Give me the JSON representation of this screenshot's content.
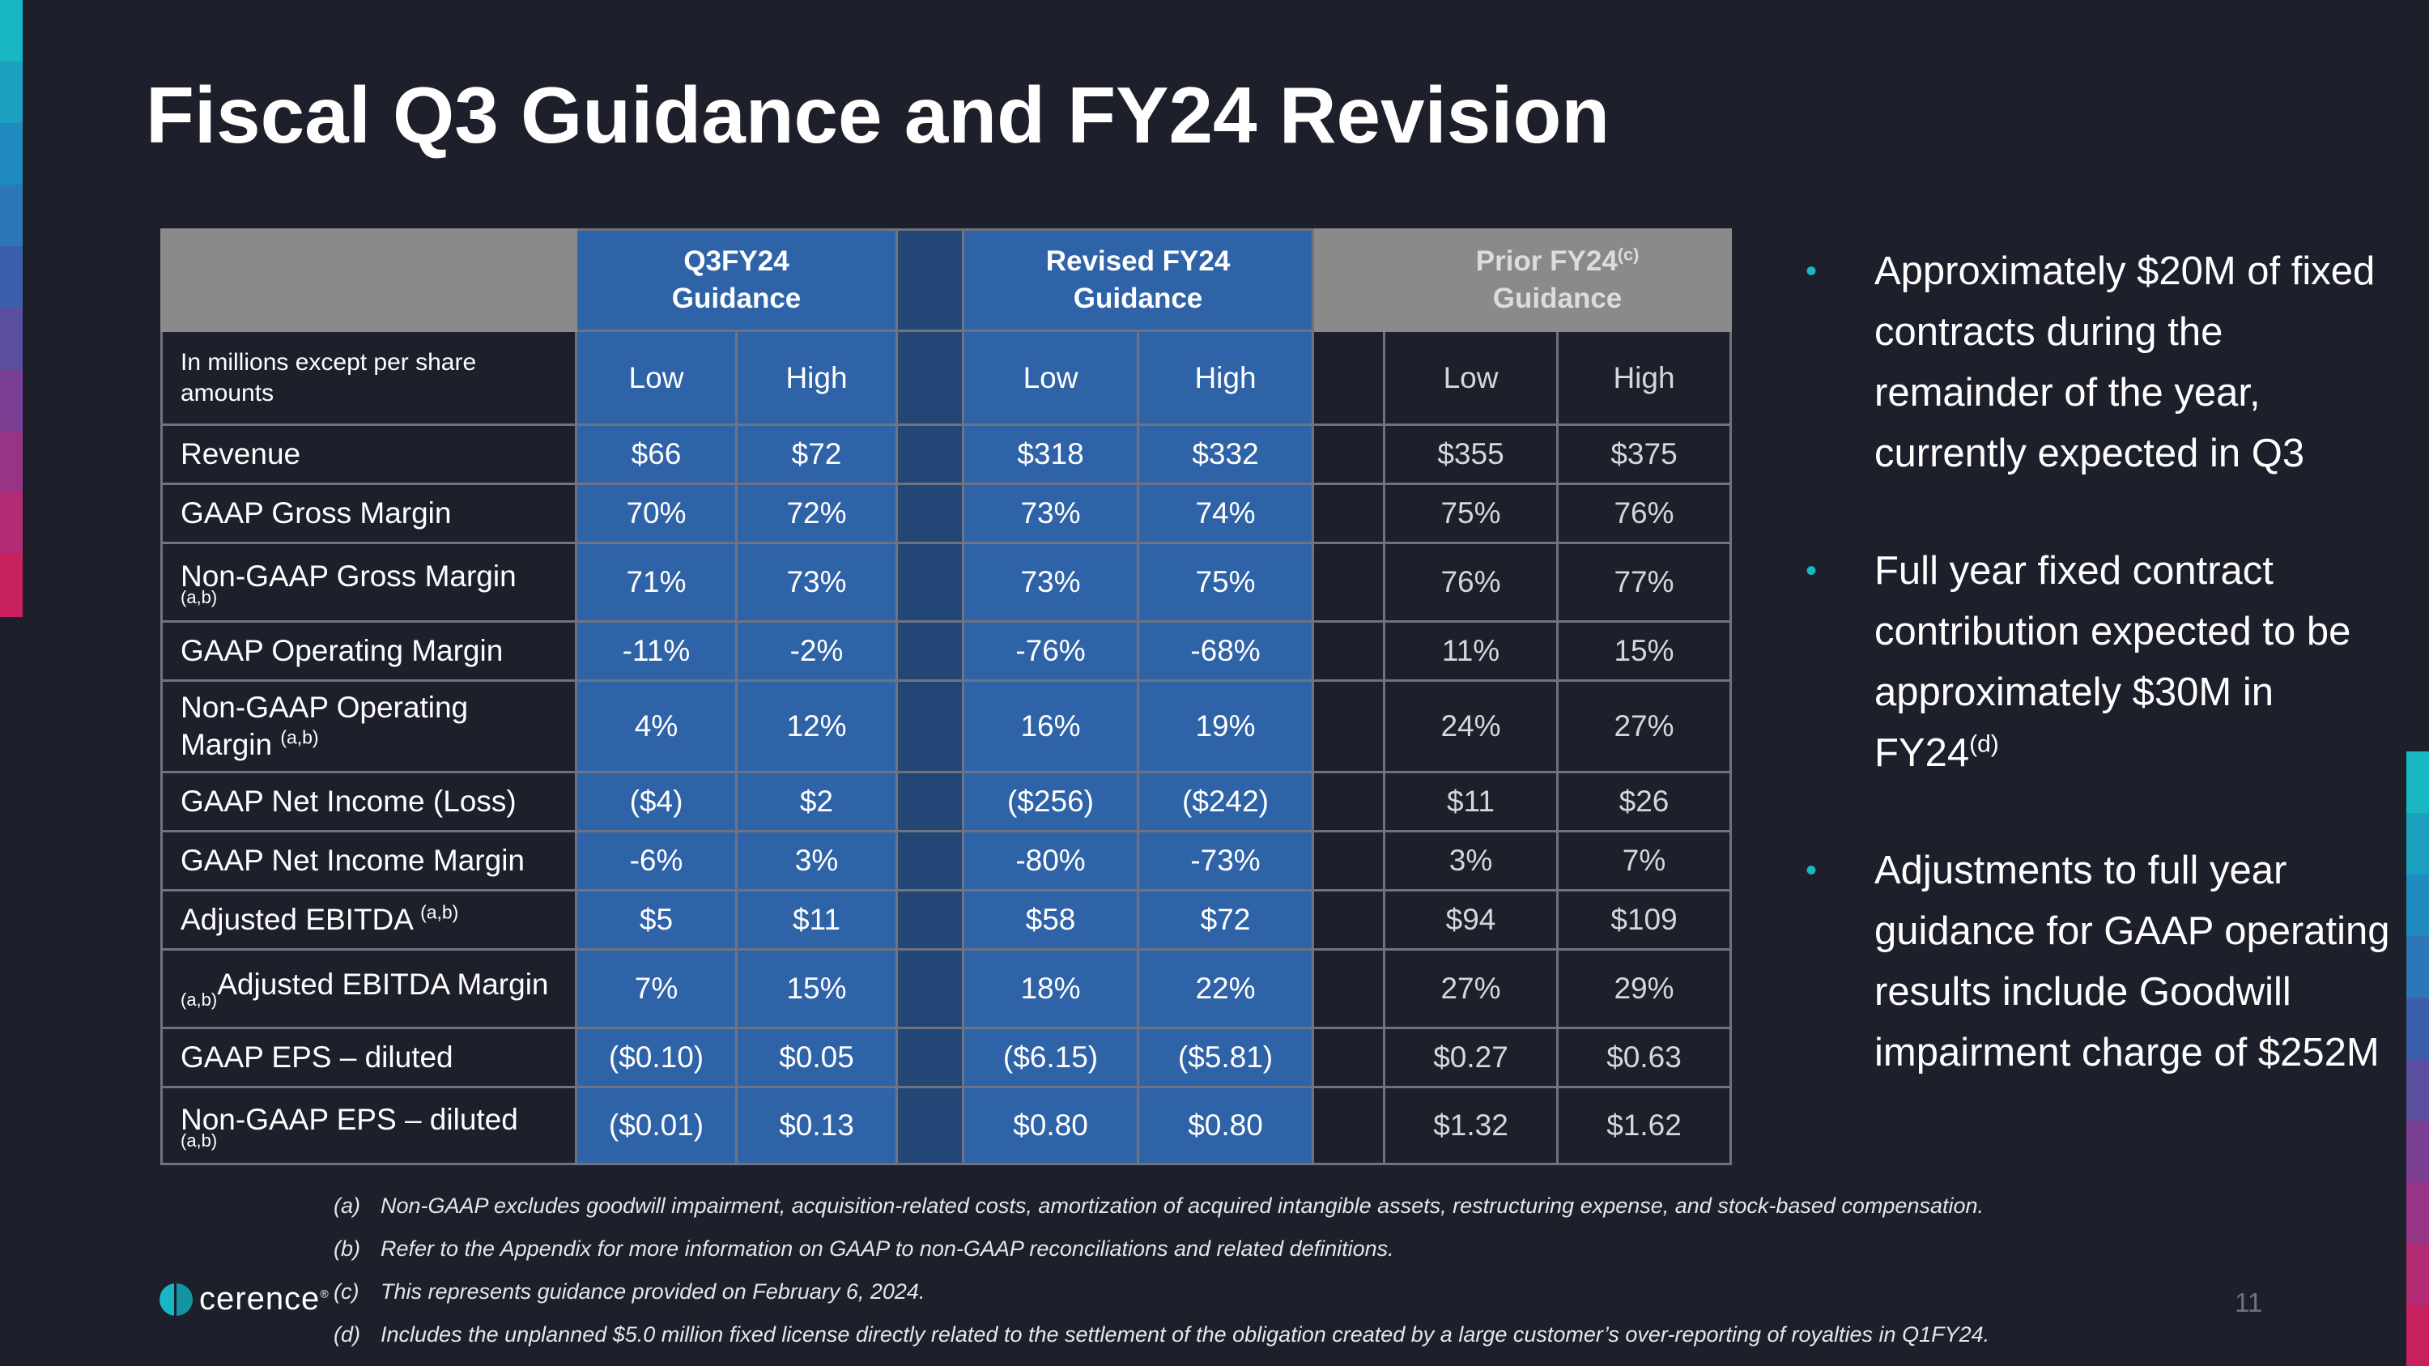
{
  "title": "Fiscal Q3 Guidance and FY24 Revision",
  "colors": {
    "background": "#1d1f2b",
    "table_blue": "#2f63a7",
    "table_gap_blue": "#224675",
    "prior_header_gray": "#8a8a8a",
    "bullet_accent": "#19b6c4",
    "logo_teal": "#19b6c4"
  },
  "table": {
    "groups": {
      "q3_line1": "Q3FY24",
      "q3_line2": "Guidance",
      "revised_line1": "Revised FY24",
      "revised_line2": "Guidance",
      "prior_line1": "Prior FY24",
      "prior_sup": "(c)",
      "prior_line2": "Guidance"
    },
    "units_label": "In millions except per share amounts",
    "col_low": "Low",
    "col_high": "High",
    "rows": [
      {
        "label": "Revenue",
        "note": "",
        "q3_low": "$66",
        "q3_high": "$72",
        "rev_low": "$318",
        "rev_high": "$332",
        "prior_low": "$355",
        "prior_high": "$375"
      },
      {
        "label": "GAAP Gross Margin",
        "note": "",
        "q3_low": "70%",
        "q3_high": "72%",
        "rev_low": "73%",
        "rev_high": "74%",
        "prior_low": "75%",
        "prior_high": "76%"
      },
      {
        "label": "Non-GAAP Gross Margin",
        "note": "(a,b)",
        "q3_low": "71%",
        "q3_high": "73%",
        "rev_low": "73%",
        "rev_high": "75%",
        "prior_low": "76%",
        "prior_high": "77%"
      },
      {
        "label": "GAAP Operating Margin",
        "note": "",
        "q3_low": "-11%",
        "q3_high": "-2%",
        "rev_low": "-76%",
        "rev_high": "-68%",
        "prior_low": "11%",
        "prior_high": "15%"
      },
      {
        "label_line1": "Non-GAAP Operating",
        "label_line2": "Margin",
        "note": "(a,b)",
        "q3_low": "4%",
        "q3_high": "12%",
        "rev_low": "16%",
        "rev_high": "19%",
        "prior_low": "24%",
        "prior_high": "27%"
      },
      {
        "label": "GAAP Net Income (Loss)",
        "note": "",
        "q3_low": "($4)",
        "q3_high": "$2",
        "rev_low": "($256)",
        "rev_high": "($242)",
        "prior_low": "$11",
        "prior_high": "$26"
      },
      {
        "label": "GAAP Net Income Margin",
        "note": "",
        "q3_low": "-6%",
        "q3_high": "3%",
        "rev_low": "-80%",
        "rev_high": "-73%",
        "prior_low": "3%",
        "prior_high": "7%"
      },
      {
        "label": "Adjusted EBITDA",
        "note": "(a,b)",
        "q3_low": "$5",
        "q3_high": "$11",
        "rev_low": "$58",
        "rev_high": "$72",
        "prior_low": "$94",
        "prior_high": "$109"
      },
      {
        "label": "Adjusted EBITDA Margin",
        "note": "(a,b)",
        "q3_low": "7%",
        "q3_high": "15%",
        "rev_low": "18%",
        "rev_high": "22%",
        "prior_low": "27%",
        "prior_high": "29%"
      },
      {
        "label": "GAAP EPS – diluted",
        "note": "",
        "q3_low": "($0.10)",
        "q3_high": "$0.05",
        "rev_low": "($6.15)",
        "rev_high": "($5.81)",
        "prior_low": "$0.27",
        "prior_high": "$0.63"
      },
      {
        "label": "Non-GAAP EPS – diluted",
        "note": "(a,b)",
        "q3_low": "($0.01)",
        "q3_high": "$0.13",
        "rev_low": "$0.80",
        "rev_high": "$0.80",
        "prior_low": "$1.32",
        "prior_high": "$1.62"
      }
    ]
  },
  "bullets": [
    {
      "text": "Approximately $20M of fixed contracts during the remainder of the year, currently expected in Q3"
    },
    {
      "text": "Full year fixed contract contribution expected to be approximately $30M in FY24",
      "sup": "(d)"
    },
    {
      "text": "Adjustments to full year guidance for GAAP operating results include Goodwill impairment charge of $252M"
    }
  ],
  "footnotes": [
    {
      "marker": "(a)",
      "text": "Non-GAAP excludes goodwill impairment, acquisition-related costs, amortization of acquired intangible assets, restructuring expense, and stock-based compensation."
    },
    {
      "marker": "(b)",
      "text": "Refer to the Appendix for more information on GAAP to non-GAAP reconciliations and related definitions."
    },
    {
      "marker": "(c)",
      "text": "This represents guidance provided on February 6, 2024."
    },
    {
      "marker": "(d)",
      "text": "Includes the unplanned $5.0 million fixed license directly related to the settlement of the obligation created by a large customer’s over-reporting of royalties in Q1FY24."
    }
  ],
  "logo": {
    "text": "cerence",
    "tm": "®"
  },
  "page_number": "11"
}
